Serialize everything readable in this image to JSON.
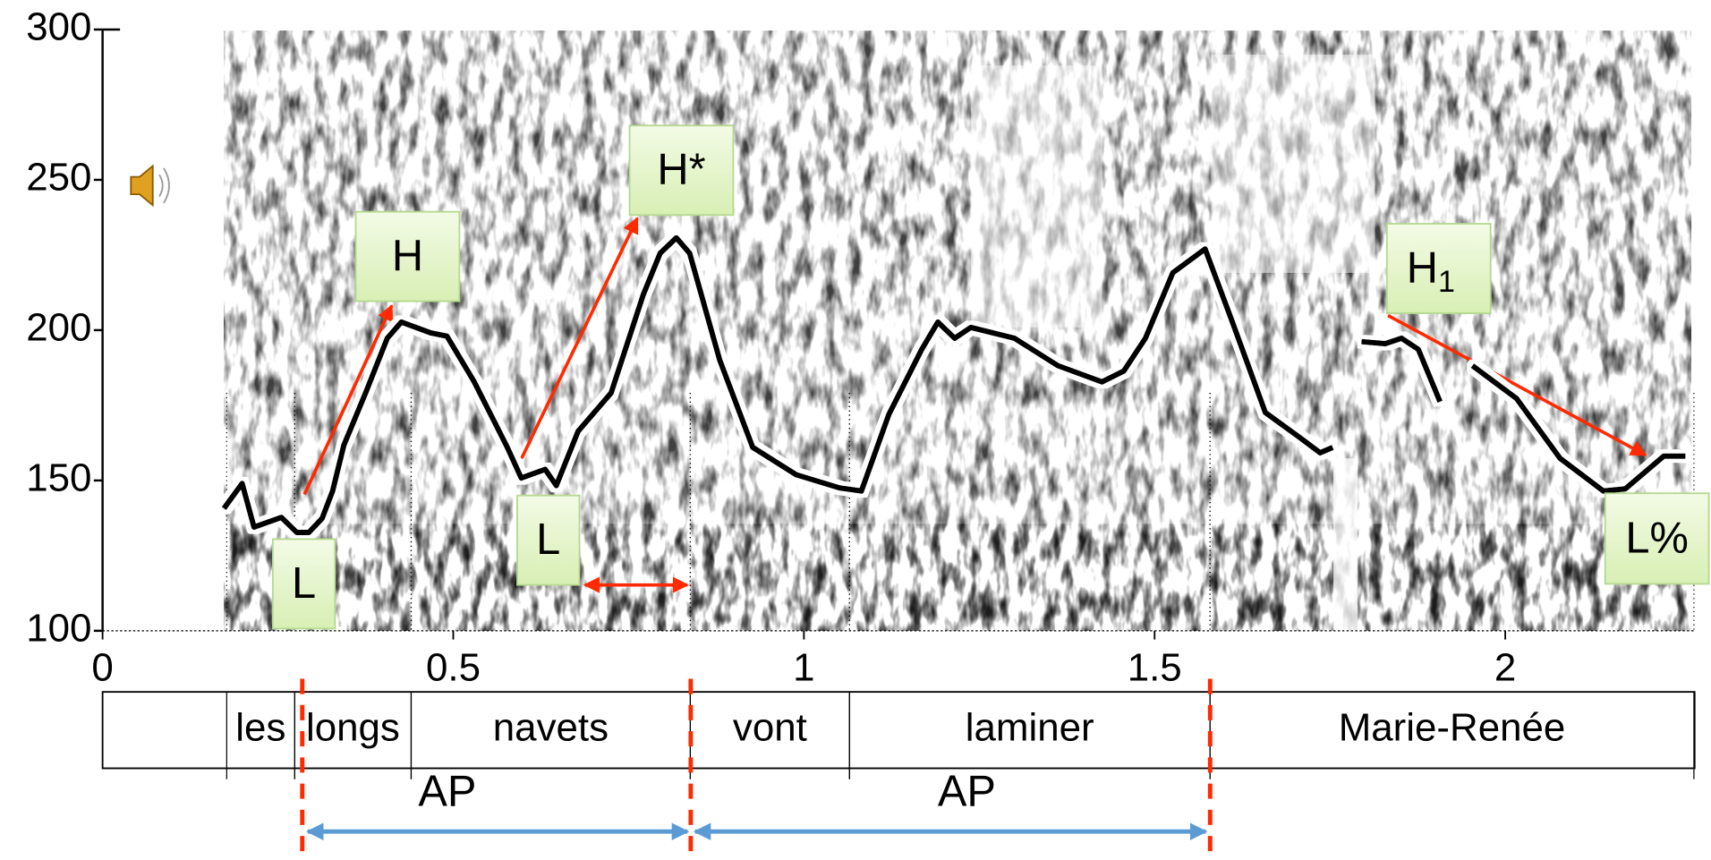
{
  "chart_data": {
    "type": "line",
    "xlim": [
      0,
      2.27
    ],
    "ylim": [
      100,
      300
    ],
    "xticks": [
      0,
      0.5,
      1,
      1.5,
      2
    ],
    "yticks": [
      100,
      150,
      200,
      250,
      300
    ],
    "color": "#000000",
    "x": [
      0.173,
      0.199,
      0.216,
      0.255,
      0.277,
      0.294,
      0.313,
      0.328,
      0.344,
      0.375,
      0.406,
      0.426,
      0.468,
      0.491,
      0.53,
      0.577,
      0.597,
      0.631,
      0.647,
      0.678,
      0.725,
      0.771,
      0.795,
      0.818,
      0.837,
      0.88,
      0.927,
      0.989,
      1.051,
      1.082,
      1.121,
      1.168,
      1.191,
      1.215,
      1.238,
      1.3,
      1.362,
      1.425,
      1.456,
      1.487,
      1.526,
      1.572,
      1.611,
      1.658,
      1.705,
      1.736,
      1.754,
      null,
      1.795,
      1.829,
      1.852,
      1.876,
      1.907,
      null,
      1.953,
      2.016,
      2.078,
      2.14,
      2.171,
      2.226,
      2.257
    ],
    "values": [
      140.7,
      149.0,
      134.5,
      137.7,
      132.7,
      132.7,
      137.4,
      146.5,
      161.7,
      179.1,
      197.3,
      202.7,
      199.1,
      198.0,
      182.8,
      161.0,
      150.8,
      153.7,
      148.3,
      166.4,
      179.1,
      211.8,
      225.6,
      230.7,
      225.6,
      190.0,
      161.0,
      151.9,
      147.5,
      146.5,
      171.9,
      193.6,
      202.7,
      197.3,
      200.9,
      197.3,
      188.2,
      182.8,
      186.4,
      197.3,
      219.1,
      227.0,
      202.7,
      172.6,
      164.6,
      159.2,
      161.0,
      null,
      196.2,
      195.5,
      197.3,
      193.6,
      176.2,
      null,
      188.2,
      177.3,
      157.4,
      146.5,
      147.2,
      158.1,
      158.1
    ],
    "words": [
      {
        "label": "les",
        "start": 0.177,
        "end": 0.274
      },
      {
        "label": "longs",
        "start": 0.274,
        "end": 0.44
      },
      {
        "label": "navets",
        "start": 0.44,
        "end": 0.838
      },
      {
        "label": "vont",
        "start": 0.838,
        "end": 1.065
      },
      {
        "label": "laminer",
        "start": 1.065,
        "end": 1.579
      },
      {
        "label": "Marie-Renée",
        "start": 1.579,
        "end": 2.269
      }
    ],
    "tones": [
      {
        "label": "L"
      },
      {
        "label": "H"
      },
      {
        "label": "L"
      },
      {
        "label": "H*"
      },
      {
        "label": "H",
        "subscript": "1"
      },
      {
        "label": "L%"
      }
    ],
    "phrases": [
      {
        "label": "AP"
      },
      {
        "label": "AP"
      }
    ]
  }
}
